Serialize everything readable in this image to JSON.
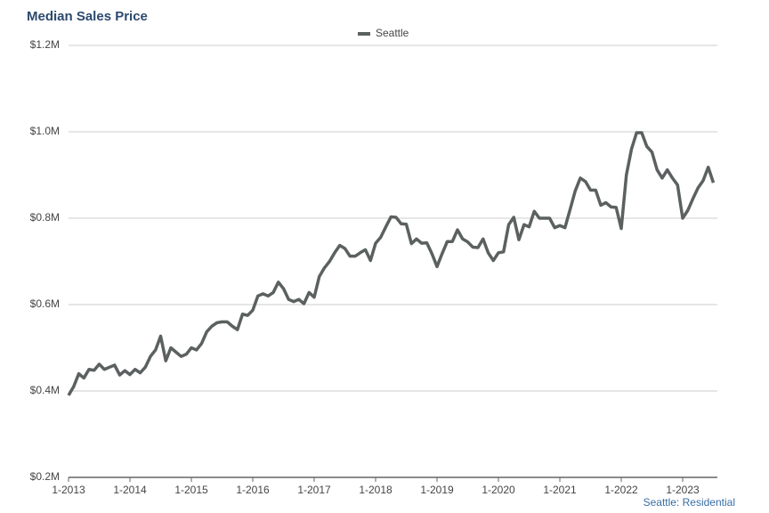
{
  "chart_data": {
    "type": "line",
    "title": "Median Sales Price",
    "footnote": "Seattle: Residential",
    "x": [
      "1-2013",
      "2-2013",
      "3-2013",
      "4-2013",
      "5-2013",
      "6-2013",
      "7-2013",
      "8-2013",
      "9-2013",
      "10-2013",
      "11-2013",
      "12-2013",
      "1-2014",
      "2-2014",
      "3-2014",
      "4-2014",
      "5-2014",
      "6-2014",
      "7-2014",
      "8-2014",
      "9-2014",
      "10-2014",
      "11-2014",
      "12-2014",
      "1-2015",
      "2-2015",
      "3-2015",
      "4-2015",
      "5-2015",
      "6-2015",
      "7-2015",
      "8-2015",
      "9-2015",
      "10-2015",
      "11-2015",
      "12-2015",
      "1-2016",
      "2-2016",
      "3-2016",
      "4-2016",
      "5-2016",
      "6-2016",
      "7-2016",
      "8-2016",
      "9-2016",
      "10-2016",
      "11-2016",
      "12-2016",
      "1-2017",
      "2-2017",
      "3-2017",
      "4-2017",
      "5-2017",
      "6-2017",
      "7-2017",
      "8-2017",
      "9-2017",
      "10-2017",
      "11-2017",
      "12-2017",
      "1-2018",
      "2-2018",
      "3-2018",
      "4-2018",
      "5-2018",
      "6-2018",
      "7-2018",
      "8-2018",
      "9-2018",
      "10-2018",
      "11-2018",
      "12-2018",
      "1-2019",
      "2-2019",
      "3-2019",
      "4-2019",
      "5-2019",
      "6-2019",
      "7-2019",
      "8-2019",
      "9-2019",
      "10-2019",
      "11-2019",
      "12-2019",
      "1-2020",
      "2-2020",
      "3-2020",
      "4-2020",
      "5-2020",
      "6-2020",
      "7-2020",
      "8-2020",
      "9-2020",
      "10-2020",
      "11-2020",
      "12-2020",
      "1-2021",
      "2-2021",
      "3-2021",
      "4-2021",
      "5-2021",
      "6-2021",
      "7-2021",
      "8-2021",
      "9-2021",
      "10-2021",
      "11-2021",
      "12-2021",
      "1-2022",
      "2-2022",
      "3-2022",
      "4-2022",
      "5-2022",
      "6-2022",
      "7-2022",
      "8-2022",
      "9-2022",
      "10-2022",
      "11-2022",
      "12-2022",
      "1-2023",
      "2-2023",
      "3-2023",
      "4-2023",
      "5-2023",
      "6-2023",
      "7-2023"
    ],
    "series": [
      {
        "name": "Seattle",
        "color": "#5b6160",
        "values": [
          390000,
          410000,
          440000,
          430000,
          450000,
          448000,
          462000,
          450000,
          455000,
          460000,
          437000,
          447000,
          438000,
          450000,
          442000,
          455000,
          480000,
          495000,
          527000,
          470000,
          500000,
          490000,
          480000,
          485000,
          500000,
          495000,
          510000,
          537000,
          550000,
          558000,
          560000,
          560000,
          550000,
          542000,
          578000,
          575000,
          587000,
          620000,
          625000,
          620000,
          628000,
          652000,
          637000,
          612000,
          607000,
          612000,
          602000,
          628000,
          617000,
          665000,
          685000,
          700000,
          720000,
          737000,
          730000,
          712000,
          712000,
          720000,
          727000,
          702000,
          742000,
          756000,
          780000,
          803000,
          802000,
          787000,
          786000,
          741000,
          752000,
          742000,
          743000,
          718000,
          688000,
          718000,
          746000,
          746000,
          773000,
          752000,
          745000,
          733000,
          732000,
          752000,
          720000,
          702000,
          720000,
          722000,
          785000,
          802000,
          750000,
          785000,
          780000,
          816000,
          800000,
          800000,
          800000,
          778000,
          783000,
          778000,
          820000,
          863000,
          893000,
          885000,
          865000,
          865000,
          830000,
          836000,
          826000,
          825000,
          776000,
          900000,
          960000,
          998000,
          998000,
          966000,
          953000,
          912000,
          893000,
          912000,
          893000,
          877000,
          800000,
          818000,
          845000,
          870000,
          887000,
          918000,
          882000
        ]
      }
    ],
    "ylim": [
      200000,
      1200000
    ],
    "yticks": [
      {
        "value": 200000,
        "label": "$0.2M"
      },
      {
        "value": 400000,
        "label": "$0.4M"
      },
      {
        "value": 600000,
        "label": "$0.6M"
      },
      {
        "value": 800000,
        "label": "$0.8M"
      },
      {
        "value": 1000000,
        "label": "$1.0M"
      },
      {
        "value": 1200000,
        "label": "$1.2M"
      }
    ],
    "xticks": [
      "1-2013",
      "1-2014",
      "1-2015",
      "1-2016",
      "1-2017",
      "1-2018",
      "1-2019",
      "1-2020",
      "1-2021",
      "1-2022",
      "1-2023"
    ],
    "grid": true
  }
}
